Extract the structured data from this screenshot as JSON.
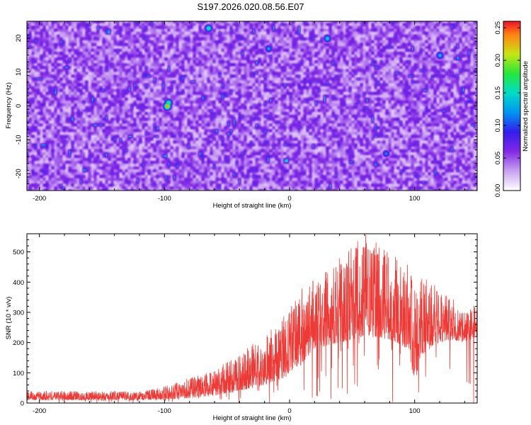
{
  "chart_data": [
    {
      "type": "heatmap",
      "title": "S197.2026.020.08.56.E07",
      "xlabel": "Height of straight line (km)",
      "ylabel": "Frequency (Hz)",
      "xlim": [
        -210,
        150
      ],
      "ylim": [
        -25,
        25
      ],
      "xticks": [
        -200,
        -100,
        0,
        100
      ],
      "yticks": [
        -20,
        -10,
        0,
        10,
        20
      ],
      "colorbar": {
        "label": "Normalized spectral amplitude",
        "range": [
          0.0,
          0.26
        ],
        "ticks": [
          0.0,
          0.05,
          0.1,
          0.15,
          0.2,
          0.25
        ],
        "colormap": "white-violet-blue-cyan-green-yellow-red"
      },
      "background_level": 0.04,
      "hotspots": [
        {
          "x": -98,
          "y": 0,
          "amplitude": 0.24
        },
        {
          "x": -97,
          "y": 1,
          "amplitude": 0.18
        },
        {
          "x": -65,
          "y": 23,
          "amplitude": 0.17
        },
        {
          "x": 30,
          "y": 20,
          "amplitude": 0.15
        },
        {
          "x": 120,
          "y": 15,
          "amplitude": 0.14
        },
        {
          "x": -17,
          "y": 17,
          "amplitude": 0.13
        },
        {
          "x": 77,
          "y": -14,
          "amplitude": 0.12
        }
      ]
    },
    {
      "type": "line",
      "xlabel": "Height of straight line (km)",
      "ylabel": "SNR (10 * v/v)",
      "xlim": [
        -210,
        150
      ],
      "ylim": [
        0,
        560
      ],
      "xticks": [
        -200,
        -100,
        0,
        100
      ],
      "yticks": [
        0,
        100,
        200,
        300,
        400,
        500
      ],
      "series": [
        {
          "name": "SNR",
          "color": "#ee3a36",
          "envelope": {
            "x": [
              -210,
              -180,
              -150,
              -120,
              -100,
              -80,
              -60,
              -40,
              -20,
              0,
              10,
              20,
              40,
              60,
              80,
              95,
              100,
              105,
              120,
              130,
              140,
              150
            ],
            "baseline": [
              10,
              10,
              10,
              10,
              12,
              16,
              25,
              40,
              60,
              90,
              130,
              180,
              200,
              220,
              210,
              180,
              60,
              160,
              200,
              210,
              200,
              220
            ],
            "peak": [
              40,
              40,
              40,
              38,
              55,
              85,
              110,
              170,
              220,
              310,
              380,
              410,
              480,
              560,
              500,
              470,
              380,
              420,
              380,
              350,
              300,
              330
            ]
          }
        }
      ]
    }
  ]
}
